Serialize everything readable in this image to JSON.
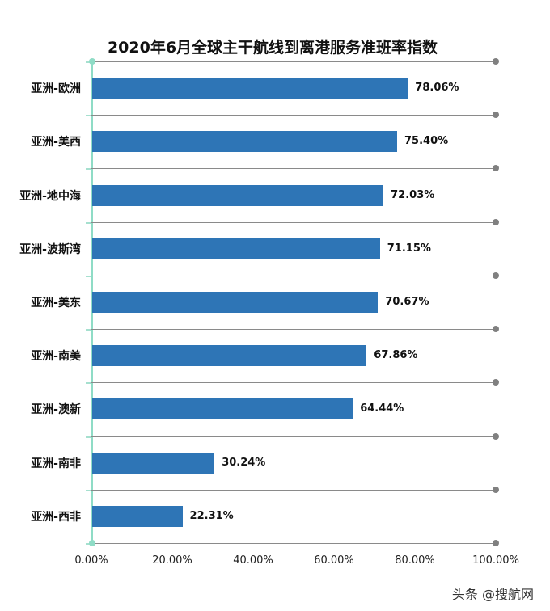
{
  "chart_data": {
    "type": "bar",
    "orientation": "horizontal",
    "title": "2020年6月全球主干航线到离港服务准班率指数",
    "categories": [
      "亚洲-欧洲",
      "亚洲-美西",
      "亚洲-地中海",
      "亚洲-波斯湾",
      "亚洲-美东",
      "亚洲-南美",
      "亚洲-澳新",
      "亚洲-南非",
      "亚洲-西非"
    ],
    "values": [
      78.06,
      75.4,
      72.03,
      71.15,
      70.67,
      67.86,
      64.44,
      30.24,
      22.31
    ],
    "value_labels": [
      "78.06%",
      "75.40%",
      "72.03%",
      "71.15%",
      "70.67%",
      "67.86%",
      "64.44%",
      "30.24%",
      "22.31%"
    ],
    "xlabel": "",
    "ylabel": "",
    "xlim": [
      0,
      100
    ],
    "x_ticks": [
      "0.00%",
      "20.00%",
      "40.00%",
      "60.00%",
      "80.00%",
      "100.00%"
    ],
    "grid": true,
    "legend": "none",
    "colors": {
      "bar": "#2e75b6",
      "axis": "#8fdcc6",
      "grid": "#8a8a8a"
    }
  },
  "watermark": "头条 @搜航网"
}
